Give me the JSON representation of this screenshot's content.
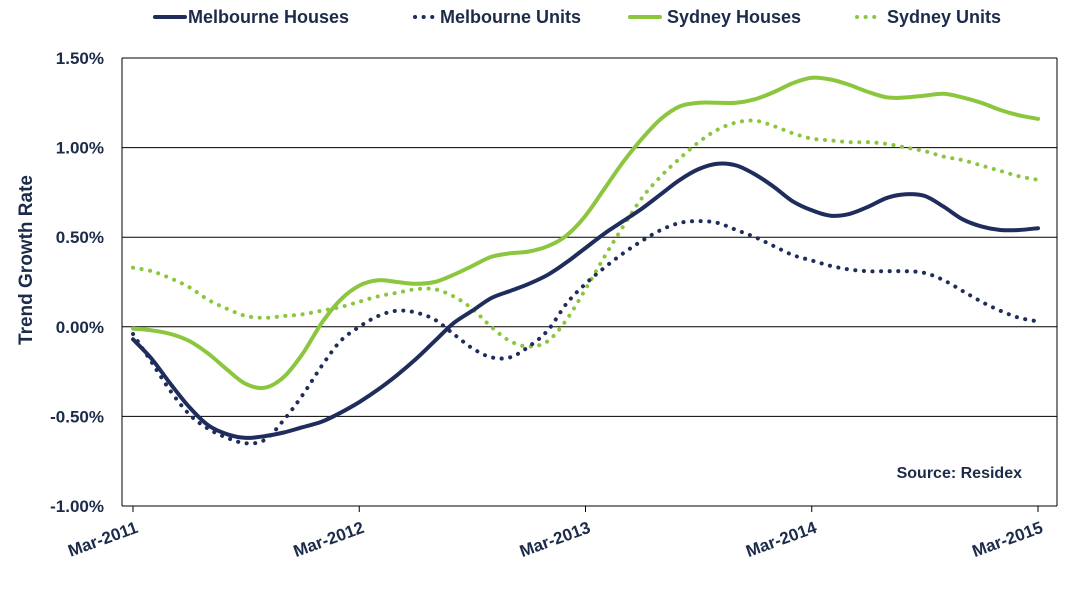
{
  "chart_data": {
    "type": "line",
    "ylabel": "Trend Growth Rate",
    "source": "Source: Residex",
    "ylim": [
      -1.0,
      1.5
    ],
    "y_ticks": [
      "1.50%",
      "1.00%",
      "0.50%",
      "0.00%",
      "-0.50%",
      "-1.00%"
    ],
    "y_tick_values": [
      1.5,
      1.0,
      0.5,
      0.0,
      -0.5,
      -1.0
    ],
    "x_ticks": [
      "Mar-2011",
      "Mar-2012",
      "Mar-2013",
      "Mar-2014",
      "Mar-2015"
    ],
    "x_tick_months": [
      0,
      12,
      24,
      36,
      48
    ],
    "grid": true,
    "legend_position": "top",
    "x": [
      "Mar-2011",
      "Apr-2011",
      "May-2011",
      "Jun-2011",
      "Jul-2011",
      "Aug-2011",
      "Sep-2011",
      "Oct-2011",
      "Nov-2011",
      "Dec-2011",
      "Jan-2012",
      "Feb-2012",
      "Mar-2012",
      "Apr-2012",
      "May-2012",
      "Jun-2012",
      "Jul-2012",
      "Aug-2012",
      "Sep-2012",
      "Oct-2012",
      "Nov-2012",
      "Dec-2012",
      "Jan-2013",
      "Feb-2013",
      "Mar-2013",
      "Apr-2013",
      "May-2013",
      "Jun-2013",
      "Jul-2013",
      "Aug-2013",
      "Sep-2013",
      "Oct-2013",
      "Nov-2013",
      "Dec-2013",
      "Jan-2014",
      "Feb-2014",
      "Mar-2014",
      "Apr-2014",
      "May-2014",
      "Jun-2014",
      "Jul-2014",
      "Aug-2014",
      "Sep-2014",
      "Oct-2014",
      "Nov-2014",
      "Dec-2014",
      "Jan-2015",
      "Feb-2015",
      "Mar-2015"
    ],
    "series": [
      {
        "name": "Melbourne Houses",
        "color": "#1f2d5c",
        "style": "solid",
        "values": [
          -0.07,
          -0.18,
          -0.32,
          -0.45,
          -0.55,
          -0.6,
          -0.62,
          -0.61,
          -0.59,
          -0.56,
          -0.53,
          -0.48,
          -0.42,
          -0.35,
          -0.27,
          -0.18,
          -0.08,
          0.02,
          0.09,
          0.16,
          0.2,
          0.24,
          0.29,
          0.36,
          0.44,
          0.52,
          0.59,
          0.66,
          0.74,
          0.82,
          0.88,
          0.91,
          0.9,
          0.85,
          0.78,
          0.7,
          0.65,
          0.62,
          0.63,
          0.67,
          0.72,
          0.74,
          0.73,
          0.67,
          0.6,
          0.56,
          0.54,
          0.54,
          0.55
        ]
      },
      {
        "name": "Melbourne Units",
        "color": "#1f2d5c",
        "style": "dotted",
        "values": [
          -0.04,
          -0.2,
          -0.36,
          -0.49,
          -0.57,
          -0.62,
          -0.65,
          -0.63,
          -0.52,
          -0.38,
          -0.22,
          -0.08,
          0.0,
          0.06,
          0.09,
          0.08,
          0.04,
          -0.04,
          -0.12,
          -0.17,
          -0.17,
          -0.11,
          -0.02,
          0.13,
          0.24,
          0.33,
          0.41,
          0.48,
          0.54,
          0.58,
          0.59,
          0.58,
          0.54,
          0.5,
          0.45,
          0.4,
          0.37,
          0.34,
          0.32,
          0.31,
          0.31,
          0.31,
          0.3,
          0.26,
          0.2,
          0.14,
          0.09,
          0.05,
          0.03
        ]
      },
      {
        "name": "Sydney Houses",
        "color": "#8cc63f",
        "style": "solid",
        "values": [
          -0.01,
          -0.02,
          -0.04,
          -0.08,
          -0.15,
          -0.24,
          -0.32,
          -0.34,
          -0.28,
          -0.15,
          0.02,
          0.15,
          0.23,
          0.26,
          0.25,
          0.24,
          0.25,
          0.29,
          0.34,
          0.39,
          0.41,
          0.42,
          0.45,
          0.51,
          0.62,
          0.77,
          0.92,
          1.05,
          1.16,
          1.23,
          1.25,
          1.25,
          1.25,
          1.27,
          1.31,
          1.36,
          1.39,
          1.38,
          1.35,
          1.31,
          1.28,
          1.28,
          1.29,
          1.3,
          1.28,
          1.25,
          1.21,
          1.18,
          1.16
        ]
      },
      {
        "name": "Sydney Units",
        "color": "#8cc63f",
        "style": "dotted",
        "values": [
          0.33,
          0.31,
          0.27,
          0.22,
          0.15,
          0.1,
          0.06,
          0.05,
          0.06,
          0.07,
          0.09,
          0.11,
          0.14,
          0.17,
          0.19,
          0.21,
          0.21,
          0.17,
          0.1,
          0.0,
          -0.08,
          -0.11,
          -0.08,
          0.04,
          0.21,
          0.39,
          0.56,
          0.72,
          0.84,
          0.94,
          1.03,
          1.1,
          1.14,
          1.15,
          1.12,
          1.08,
          1.05,
          1.04,
          1.03,
          1.03,
          1.02,
          1.0,
          0.98,
          0.95,
          0.93,
          0.9,
          0.87,
          0.84,
          0.82
        ]
      }
    ]
  }
}
